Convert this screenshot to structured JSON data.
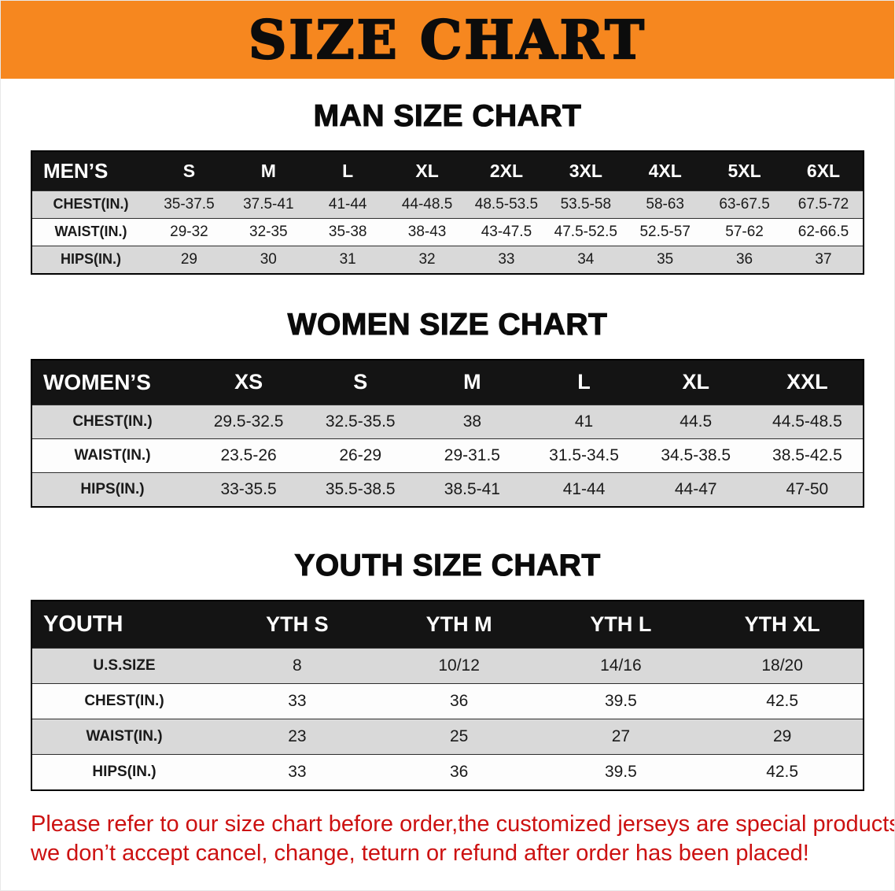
{
  "banner": {
    "title": "SIZE CHART"
  },
  "sections": [
    {
      "id": "men",
      "heading": "MAN SIZE CHART",
      "table": {
        "header": [
          "MEN’S",
          "S",
          "M",
          "L",
          "XL",
          "2XL",
          "3XL",
          "4XL",
          "5XL",
          "6XL"
        ],
        "rows": [
          [
            "CHEST(IN.)",
            "35-37.5",
            "37.5-41",
            "41-44",
            "44-48.5",
            "48.5-53.5",
            "53.5-58",
            "58-63",
            "63-67.5",
            "67.5-72"
          ],
          [
            "WAIST(IN.)",
            "29-32",
            "32-35",
            "35-38",
            "38-43",
            "43-47.5",
            "47.5-52.5",
            "52.5-57",
            "57-62",
            "62-66.5"
          ],
          [
            "HIPS(IN.)",
            "29",
            "30",
            "31",
            "32",
            "33",
            "34",
            "35",
            "36",
            "37"
          ]
        ]
      }
    },
    {
      "id": "women",
      "heading": "WOMEN SIZE CHART",
      "table": {
        "header": [
          "WOMEN’S",
          "XS",
          "S",
          "M",
          "L",
          "XL",
          "XXL"
        ],
        "rows": [
          [
            "CHEST(IN.)",
            "29.5-32.5",
            "32.5-35.5",
            "38",
            "41",
            "44.5",
            "44.5-48.5"
          ],
          [
            "WAIST(IN.)",
            "23.5-26",
            "26-29",
            "29-31.5",
            "31.5-34.5",
            "34.5-38.5",
            "38.5-42.5"
          ],
          [
            "HIPS(IN.)",
            "33-35.5",
            "35.5-38.5",
            "38.5-41",
            "41-44",
            "44-47",
            "47-50"
          ]
        ]
      }
    },
    {
      "id": "youth",
      "heading": "YOUTH SIZE CHART",
      "table": {
        "header": [
          "YOUTH",
          "YTH S",
          "YTH M",
          "YTH L",
          "YTH XL"
        ],
        "rows": [
          [
            "U.S.SIZE",
            "8",
            "10/12",
            "14/16",
            "18/20"
          ],
          [
            "CHEST(IN.)",
            "33",
            "36",
            "39.5",
            "42.5"
          ],
          [
            "WAIST(IN.)",
            "23",
            "25",
            "27",
            "29"
          ],
          [
            "HIPS(IN.)",
            "33",
            "36",
            "39.5",
            "42.5"
          ]
        ]
      }
    }
  ],
  "disclaimer": {
    "lines": [
      "Please refer to our size chart before order,the customized jerseys are special products,",
      "we don’t accept cancel, change, teturn or refund after order has been placed!"
    ]
  },
  "colors": {
    "banner_bg": "#f6871f",
    "table_header_bg": "#141414",
    "row_stripe": "#d9d9d9",
    "disclaimer_text": "#cc1111"
  }
}
